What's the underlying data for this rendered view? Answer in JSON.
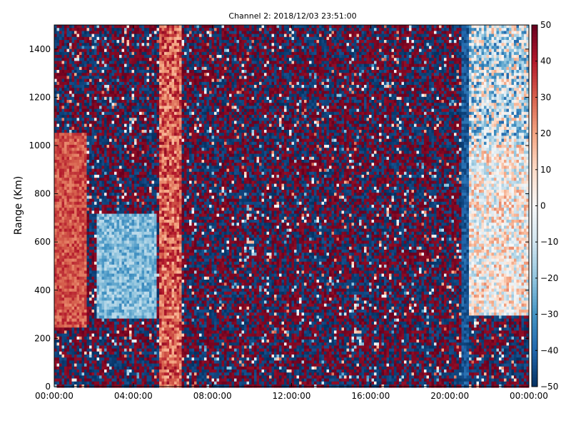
{
  "chart_data": {
    "type": "heatmap",
    "title": "Channel 2: 2018/12/03 23:51:00",
    "xlabel": "",
    "ylabel": "Range (Km)",
    "x_ticks": [
      "00:00:00",
      "04:00:00",
      "08:00:00",
      "12:00:00",
      "16:00:00",
      "20:00:00",
      "00:00:00"
    ],
    "x_tick_hours": [
      0,
      4,
      8,
      12,
      16,
      20,
      24
    ],
    "xlim_hours": [
      0,
      24
    ],
    "y_ticks": [
      0,
      200,
      400,
      600,
      800,
      1000,
      1200,
      1400
    ],
    "ylim": [
      0,
      1500
    ],
    "colorbar": {
      "ticks": [
        50,
        40,
        30,
        20,
        10,
        0,
        -10,
        -20,
        -30,
        -40,
        -50
      ],
      "tick_labels": [
        "50",
        "40",
        "30",
        "20",
        "10",
        "0",
        "−10",
        "−20",
        "−30",
        "−40",
        "−50"
      ],
      "vmin": -50,
      "vmax": 50,
      "colormap": "RdBu_r"
    },
    "regions": [
      {
        "t_start": 0.0,
        "t_end": 1.6,
        "range_start": 250,
        "range_end": 1050,
        "mean_value": 32,
        "spread": 8
      },
      {
        "t_start": 2.2,
        "t_end": 5.2,
        "range_start": 280,
        "range_end": 720,
        "mean_value": -22,
        "spread": 10
      },
      {
        "t_start": 5.3,
        "t_end": 6.5,
        "range_start": 0,
        "range_end": 1500,
        "mean_value": 30,
        "spread": 14
      },
      {
        "t_start": 21.0,
        "t_end": 24.0,
        "range_start": 300,
        "range_end": 1000,
        "mean_value": 2,
        "spread": 22
      },
      {
        "t_start": 21.0,
        "t_end": 24.0,
        "range_start": 1000,
        "range_end": 1500,
        "mean_value": -10,
        "spread": 30
      },
      {
        "t_start": 20.6,
        "t_end": 21.0,
        "range_start": 0,
        "range_end": 1500,
        "mean_value": -42,
        "spread": 6
      }
    ],
    "noise_background": {
      "description_values": [
        -50,
        50
      ]
    }
  }
}
